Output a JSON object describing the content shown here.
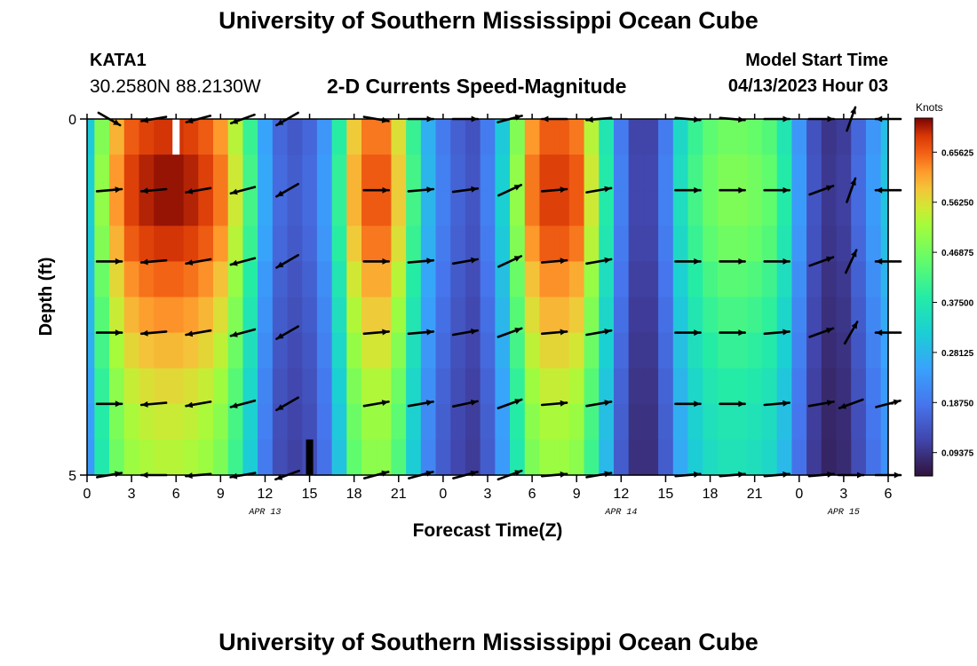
{
  "header": {
    "title": "University of Southern Mississippi Ocean Cube",
    "station_id": "KATA1",
    "coordinates": "30.2580N  88.2130W",
    "subtitle": "2-D Currents Speed-Magnitude",
    "model_start_label": "Model Start Time",
    "model_start_value": "04/13/2023 Hour 03"
  },
  "footer": {
    "title": "University of Southern Mississippi Ocean Cube"
  },
  "chart_data": {
    "type": "heatmap",
    "title": "2-D Currents Speed-Magnitude",
    "xlabel": "Forecast Time(Z)",
    "ylabel": "Depth (ft)",
    "x_tick_labels": [
      "0",
      "3",
      "6",
      "9",
      "12",
      "15",
      "18",
      "21",
      "0",
      "3",
      "6",
      "9",
      "12",
      "15",
      "18",
      "21",
      "0",
      "3",
      "6"
    ],
    "x_range_hours": [
      0,
      54
    ],
    "date_labels": [
      {
        "text": "APR 13",
        "hour": 12
      },
      {
        "text": "APR 14",
        "hour": 36
      },
      {
        "text": "APR 15",
        "hour": 51
      }
    ],
    "y_tick_labels": [
      "0",
      "5"
    ],
    "y_range": [
      0,
      5
    ],
    "depth_levels": 5,
    "colorbar": {
      "label": "Knots",
      "min": 0.05,
      "max": 0.72,
      "tick_labels": [
        "0.65625",
        "0.56250",
        "0.46875",
        "0.37500",
        "0.28125",
        "0.18750",
        "0.09375"
      ],
      "tick_values": [
        0.65625,
        0.5625,
        0.46875,
        0.375,
        0.28125,
        0.1875,
        0.09375
      ]
    },
    "speed_profile": {
      "hours": [
        0,
        1,
        2,
        3,
        4,
        5,
        6,
        7,
        8,
        9,
        10,
        11,
        12,
        13,
        14,
        15,
        16,
        17,
        18,
        19,
        20,
        21,
        22,
        23,
        24,
        25,
        26,
        27,
        28,
        29,
        30,
        31,
        32,
        33,
        34,
        35,
        36,
        37,
        38,
        39,
        40,
        41,
        42,
        43,
        44,
        45,
        46,
        47,
        48,
        49,
        50,
        51,
        52,
        53,
        54
      ],
      "values": [
        0.32,
        0.5,
        0.62,
        0.68,
        0.7,
        0.71,
        0.71,
        0.7,
        0.68,
        0.64,
        0.55,
        0.42,
        0.26,
        0.17,
        0.15,
        0.17,
        0.24,
        0.4,
        0.6,
        0.66,
        0.66,
        0.58,
        0.42,
        0.28,
        0.2,
        0.16,
        0.14,
        0.2,
        0.32,
        0.5,
        0.64,
        0.68,
        0.68,
        0.66,
        0.55,
        0.38,
        0.2,
        0.12,
        0.12,
        0.2,
        0.35,
        0.42,
        0.46,
        0.48,
        0.48,
        0.47,
        0.45,
        0.38,
        0.24,
        0.14,
        0.1,
        0.11,
        0.17,
        0.24,
        0.3
      ]
    },
    "depth_factor": [
      0.97,
      1.0,
      1.0,
      0.97,
      0.92,
      0.88,
      0.84,
      0.8,
      0.77,
      0.75
    ],
    "arrow_columns": [
      {
        "hour": 1.5,
        "dirs": [
          -30,
          5,
          0,
          0,
          0,
          10
        ]
      },
      {
        "hour": 4.5,
        "dirs": [
          190,
          185,
          185,
          185,
          185,
          180
        ]
      },
      {
        "hour": 7.5,
        "dirs": [
          195,
          190,
          190,
          190,
          190,
          185
        ]
      },
      {
        "hour": 10.5,
        "dirs": [
          200,
          195,
          195,
          195,
          195,
          190
        ]
      },
      {
        "hour": 13.5,
        "dirs": [
          210,
          210,
          210,
          210,
          210,
          200
        ]
      },
      {
        "hour": 19.5,
        "dirs": [
          -10,
          0,
          0,
          5,
          10,
          15
        ]
      },
      {
        "hour": 22.5,
        "dirs": [
          0,
          5,
          5,
          5,
          10,
          15
        ]
      },
      {
        "hour": 25.5,
        "dirs": [
          0,
          8,
          10,
          10,
          12,
          15
        ]
      },
      {
        "hour": 28.5,
        "dirs": [
          15,
          25,
          25,
          20,
          20,
          20
        ]
      },
      {
        "hour": 31.5,
        "dirs": [
          180,
          5,
          5,
          5,
          5,
          5
        ]
      },
      {
        "hour": 34.5,
        "dirs": [
          185,
          10,
          10,
          10,
          10,
          10
        ]
      },
      {
        "hour": 40.5,
        "dirs": [
          -5,
          0,
          0,
          0,
          0,
          5
        ]
      },
      {
        "hour": 43.5,
        "dirs": [
          -5,
          0,
          0,
          0,
          0,
          5
        ]
      },
      {
        "hour": 46.5,
        "dirs": [
          0,
          0,
          0,
          5,
          5,
          5
        ]
      },
      {
        "hour": 49.5,
        "dirs": [
          0,
          20,
          20,
          20,
          10,
          5
        ]
      },
      {
        "hour": 51.5,
        "dirs": [
          70,
          70,
          65,
          60,
          200,
          0
        ]
      },
      {
        "hour": 54,
        "dirs": [
          180,
          180,
          180,
          180,
          15,
          0
        ]
      }
    ],
    "missing_cells": [
      {
        "hour": 6,
        "depth_row": 0,
        "color": "#ffffff"
      },
      {
        "hour": 15,
        "depth_row": 9,
        "color": "#000000"
      }
    ]
  }
}
